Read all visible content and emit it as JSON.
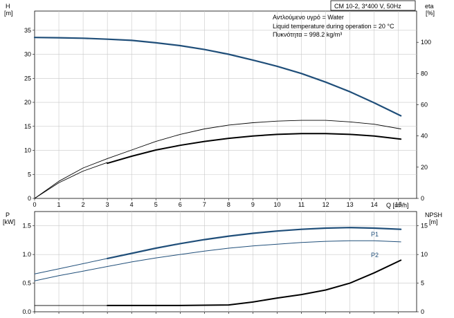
{
  "chart_data": [
    {
      "type": "line",
      "title_box": "CM 10-2, 3*400 V, 50Hz",
      "annotations": [
        "Αντλούμενο υγρό = Water",
        "Liquid temperature during operation = 20 °C",
        "Πυκνότητα = 998.2 kg/m³"
      ],
      "xlabel": "Q [m³/h]",
      "xlim": [
        0,
        15.75
      ],
      "xticks": [
        "0",
        "1",
        "2",
        "3",
        "4",
        "5",
        "6",
        "7",
        "8",
        "9",
        "10",
        "11",
        "12",
        "13",
        "14",
        "15"
      ],
      "y_left": {
        "label_top": "H",
        "label_unit": "[m]",
        "ylim": [
          0,
          39
        ],
        "ticks": [
          "0",
          "5",
          "10",
          "15",
          "20",
          "25",
          "30",
          "35"
        ]
      },
      "y_right": {
        "label_top": "eta",
        "label_unit": "[%]",
        "ylim": [
          0,
          120
        ],
        "ticks": [
          "0",
          "20",
          "40",
          "60",
          "80",
          "100"
        ]
      },
      "grid": true,
      "series": [
        {
          "name": "",
          "axis": "left",
          "style": "thick-blue",
          "x": [
            0,
            1,
            2,
            3,
            4,
            5,
            6,
            7,
            8,
            9,
            10,
            11,
            12,
            13,
            14,
            15.1
          ],
          "y": [
            33.5,
            33.45,
            33.35,
            33.15,
            32.9,
            32.4,
            31.8,
            31.0,
            30.0,
            28.8,
            27.5,
            26.0,
            24.2,
            22.2,
            19.9,
            17.2
          ]
        },
        {
          "name": "",
          "axis": "right",
          "style": "thin-black",
          "x": [
            0,
            1,
            2,
            3,
            4,
            5,
            6,
            7,
            8,
            9,
            10,
            11,
            12,
            13,
            14,
            15.1
          ],
          "y": [
            0,
            11,
            19.5,
            25.5,
            31,
            36.5,
            41,
            44.5,
            47,
            48.5,
            49.5,
            50,
            50,
            49,
            47.5,
            44.5
          ]
        },
        {
          "name": "",
          "axis": "right",
          "style": "thin-black",
          "x": [
            0,
            1,
            2,
            3
          ],
          "y": [
            0,
            10,
            17.5,
            23
          ]
        },
        {
          "name": "",
          "axis": "right",
          "style": "thick-black",
          "x": [
            3,
            4,
            5,
            6,
            7,
            8,
            9,
            10,
            11,
            12,
            13,
            14,
            15.1
          ],
          "y": [
            22.5,
            27,
            31,
            34,
            36.5,
            38.5,
            40,
            41,
            41.5,
            41.5,
            41,
            40,
            38
          ]
        }
      ]
    },
    {
      "type": "line",
      "xlim": [
        0,
        15.75
      ],
      "y_left": {
        "label_top": "P",
        "label_unit": "[kW]",
        "ylim": [
          0,
          1.75
        ],
        "ticks": [
          "0.0",
          "0.5",
          "1.0",
          "1.5"
        ]
      },
      "y_right": {
        "label_top": "NPSH",
        "label_unit": "[m]",
        "ylim": [
          0,
          17.5
        ],
        "ticks": [
          "0",
          "5",
          "10",
          "15"
        ]
      },
      "grid": true,
      "series": [
        {
          "name": "P1",
          "axis": "left",
          "style": "thick-blue",
          "x": [
            3,
            4,
            5,
            6,
            7,
            8,
            9,
            10,
            11,
            12,
            13,
            14,
            15.1
          ],
          "y": [
            0.93,
            1.02,
            1.11,
            1.19,
            1.26,
            1.32,
            1.37,
            1.41,
            1.44,
            1.46,
            1.47,
            1.46,
            1.44
          ]
        },
        {
          "name": "",
          "axis": "left",
          "style": "thin-blue",
          "x": [
            0,
            1,
            2,
            3
          ],
          "y": [
            0.66,
            0.75,
            0.84,
            0.93
          ]
        },
        {
          "name": "P2",
          "axis": "left",
          "style": "thin-blue",
          "x": [
            0,
            1,
            2,
            3,
            4,
            5,
            6,
            7,
            8,
            9,
            10,
            11,
            12,
            13,
            14,
            15.1
          ],
          "y": [
            0.54,
            0.63,
            0.71,
            0.79,
            0.87,
            0.94,
            1.0,
            1.06,
            1.11,
            1.15,
            1.18,
            1.21,
            1.23,
            1.24,
            1.24,
            1.22
          ]
        },
        {
          "name": "",
          "axis": "right",
          "style": "thin-black",
          "x": [
            0,
            3
          ],
          "y": [
            1.1,
            1.1
          ]
        },
        {
          "name": "",
          "axis": "right",
          "style": "thick-black",
          "x": [
            3,
            4,
            5,
            6,
            7,
            8,
            9,
            10,
            11,
            12,
            13,
            14,
            15.1
          ],
          "y": [
            1.1,
            1.1,
            1.1,
            1.1,
            1.15,
            1.2,
            1.7,
            2.4,
            3.0,
            3.8,
            5.0,
            6.8,
            9.0
          ]
        }
      ]
    }
  ],
  "colors": {
    "blue": "#1f4e79",
    "black": "#000000",
    "grid": "#c8c8c8"
  }
}
